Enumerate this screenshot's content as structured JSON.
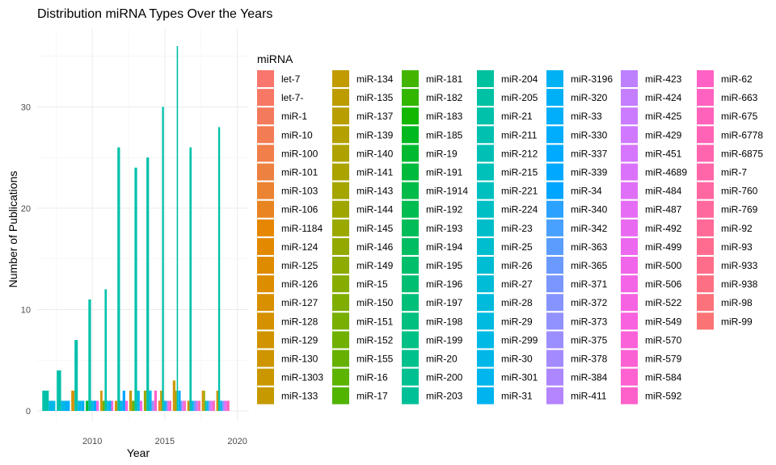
{
  "chart_data": {
    "type": "bar",
    "title": "Distribution miRNA Types Over the Years",
    "xlabel": "Year",
    "ylabel": "Number of Publications",
    "xlim": [
      2006.2,
      2020.8
    ],
    "ylim": [
      0,
      36
    ],
    "x_ticks": [
      "2010",
      "2015",
      "2020"
    ],
    "y_ticks": [
      "0",
      "10",
      "20",
      "30"
    ],
    "grid": true,
    "legend": {
      "title": "miRNA",
      "position": "right",
      "entries": [
        "let-7",
        "let-7-",
        "miR-1",
        "miR-10",
        "miR-100",
        "miR-101",
        "miR-103",
        "miR-106",
        "miR-1184",
        "miR-124",
        "miR-125",
        "miR-126",
        "miR-127",
        "miR-128",
        "miR-129",
        "miR-130",
        "miR-1303",
        "miR-133",
        "miR-134",
        "miR-135",
        "miR-137",
        "miR-139",
        "miR-140",
        "miR-141",
        "miR-143",
        "miR-144",
        "miR-145",
        "miR-146",
        "miR-149",
        "miR-15",
        "miR-150",
        "miR-151",
        "miR-152",
        "miR-155",
        "miR-16",
        "miR-17",
        "miR-181",
        "miR-182",
        "miR-183",
        "miR-185",
        "miR-19",
        "miR-191",
        "miR-1914",
        "miR-192",
        "miR-193",
        "miR-194",
        "miR-195",
        "miR-196",
        "miR-197",
        "miR-198",
        "miR-199",
        "miR-20",
        "miR-200",
        "miR-203",
        "miR-204",
        "miR-205",
        "miR-21",
        "miR-211",
        "miR-212",
        "miR-215",
        "miR-221",
        "miR-224",
        "miR-23",
        "miR-25",
        "miR-26",
        "miR-27",
        "miR-28",
        "miR-29",
        "miR-299",
        "miR-30",
        "miR-301",
        "miR-31",
        "miR-3196",
        "miR-320",
        "miR-33",
        "miR-330",
        "miR-337",
        "miR-339",
        "miR-34",
        "miR-340",
        "miR-342",
        "miR-363",
        "miR-365",
        "miR-371",
        "miR-372",
        "miR-373",
        "miR-375",
        "miR-378",
        "miR-384",
        "miR-411",
        "miR-423",
        "miR-424",
        "miR-425",
        "miR-429",
        "miR-451",
        "miR-4689",
        "miR-484",
        "miR-487",
        "miR-492",
        "miR-499",
        "miR-500",
        "miR-506",
        "miR-522",
        "miR-549",
        "miR-570",
        "miR-579",
        "miR-584",
        "miR-592",
        "miR-62",
        "miR-663",
        "miR-675",
        "miR-6778",
        "miR-6875",
        "miR-7",
        "miR-760",
        "miR-769",
        "miR-92",
        "miR-93",
        "miR-933",
        "miR-938",
        "miR-98",
        "miR-99"
      ]
    },
    "years": [
      {
        "year": 2007,
        "bars": [
          {
            "mirna": "miR-21",
            "value": 2
          },
          {
            "mirna": "miR-30",
            "value": 1
          }
        ]
      },
      {
        "year": 2008,
        "bars": [
          {
            "mirna": "miR-21",
            "value": 4
          },
          {
            "mirna": "miR-30",
            "value": 1
          },
          {
            "mirna": "miR-33",
            "value": 1
          }
        ]
      },
      {
        "year": 2009,
        "bars": [
          {
            "mirna": "miR-128",
            "value": 2
          },
          {
            "mirna": "miR-21",
            "value": 7
          },
          {
            "mirna": "miR-30",
            "value": 1
          },
          {
            "mirna": "miR-33",
            "value": 1
          }
        ]
      },
      {
        "year": 2010,
        "bars": [
          {
            "mirna": "miR-19",
            "value": 1
          },
          {
            "mirna": "miR-21",
            "value": 11
          },
          {
            "mirna": "miR-29",
            "value": 1
          },
          {
            "mirna": "miR-34",
            "value": 1
          },
          {
            "mirna": "miR-506",
            "value": 1
          }
        ]
      },
      {
        "year": 2011,
        "bars": [
          {
            "mirna": "miR-129",
            "value": 2
          },
          {
            "mirna": "miR-155",
            "value": 1
          },
          {
            "mirna": "miR-21",
            "value": 12
          },
          {
            "mirna": "miR-29",
            "value": 1
          },
          {
            "mirna": "miR-33",
            "value": 1
          },
          {
            "mirna": "miR-506",
            "value": 1
          }
        ]
      },
      {
        "year": 2012,
        "bars": [
          {
            "mirna": "miR-130",
            "value": 1
          },
          {
            "mirna": "miR-21",
            "value": 26
          },
          {
            "mirna": "miR-30",
            "value": 1
          },
          {
            "mirna": "miR-34",
            "value": 2
          },
          {
            "mirna": "miR-506",
            "value": 1
          }
        ]
      },
      {
        "year": 2013,
        "bars": [
          {
            "mirna": "miR-133",
            "value": 2
          },
          {
            "mirna": "miR-155",
            "value": 1
          },
          {
            "mirna": "miR-21",
            "value": 24
          },
          {
            "mirna": "miR-30",
            "value": 2
          },
          {
            "mirna": "miR-506",
            "value": 1
          }
        ]
      },
      {
        "year": 2014,
        "bars": [
          {
            "mirna": "miR-145",
            "value": 2
          },
          {
            "mirna": "miR-21",
            "value": 25
          },
          {
            "mirna": "miR-301",
            "value": 2
          },
          {
            "mirna": "miR-375",
            "value": 1
          },
          {
            "mirna": "miR-592",
            "value": 2
          }
        ]
      },
      {
        "year": 2015,
        "bars": [
          {
            "mirna": "miR-103",
            "value": 1
          },
          {
            "mirna": "miR-134",
            "value": 2
          },
          {
            "mirna": "miR-21",
            "value": 30
          },
          {
            "mirna": "miR-31",
            "value": 1
          },
          {
            "mirna": "miR-363",
            "value": 1
          },
          {
            "mirna": "miR-506",
            "value": 1
          },
          {
            "mirna": "miR-6875",
            "value": 1
          }
        ]
      },
      {
        "year": 2016,
        "bars": [
          {
            "mirna": "miR-128",
            "value": 3
          },
          {
            "mirna": "miR-134",
            "value": 3
          },
          {
            "mirna": "miR-143",
            "value": 2
          },
          {
            "mirna": "miR-21",
            "value": 36
          },
          {
            "mirna": "miR-301",
            "value": 2
          },
          {
            "mirna": "miR-34",
            "value": 2
          },
          {
            "mirna": "miR-371",
            "value": 1
          },
          {
            "mirna": "miR-451",
            "value": 1
          },
          {
            "mirna": "miR-549",
            "value": 1
          },
          {
            "mirna": "miR-6875",
            "value": 1
          }
        ]
      },
      {
        "year": 2017,
        "bars": [
          {
            "mirna": "miR-129",
            "value": 1
          },
          {
            "mirna": "miR-21",
            "value": 26
          },
          {
            "mirna": "miR-301",
            "value": 1
          },
          {
            "mirna": "miR-371",
            "value": 1
          },
          {
            "mirna": "miR-451",
            "value": 1
          },
          {
            "mirna": "miR-7",
            "value": 1
          }
        ]
      },
      {
        "year": 2018,
        "bars": [
          {
            "mirna": "miR-128",
            "value": 2
          },
          {
            "mirna": "miR-145",
            "value": 2
          },
          {
            "mirna": "miR-21",
            "value": 1
          },
          {
            "mirna": "miR-301",
            "value": 1
          },
          {
            "mirna": "miR-371",
            "value": 1
          },
          {
            "mirna": "miR-451",
            "value": 1
          },
          {
            "mirna": "miR-549",
            "value": 1
          },
          {
            "mirna": "miR-6875",
            "value": 1
          }
        ]
      },
      {
        "year": 2019,
        "bars": [
          {
            "mirna": "miR-133",
            "value": 2
          },
          {
            "mirna": "miR-21",
            "value": 28
          },
          {
            "mirna": "miR-30",
            "value": 1
          },
          {
            "mirna": "miR-371",
            "value": 1
          },
          {
            "mirna": "miR-451",
            "value": 1
          },
          {
            "mirna": "miR-549",
            "value": 1
          },
          {
            "mirna": "miR-6875",
            "value": 1
          }
        ]
      }
    ]
  }
}
